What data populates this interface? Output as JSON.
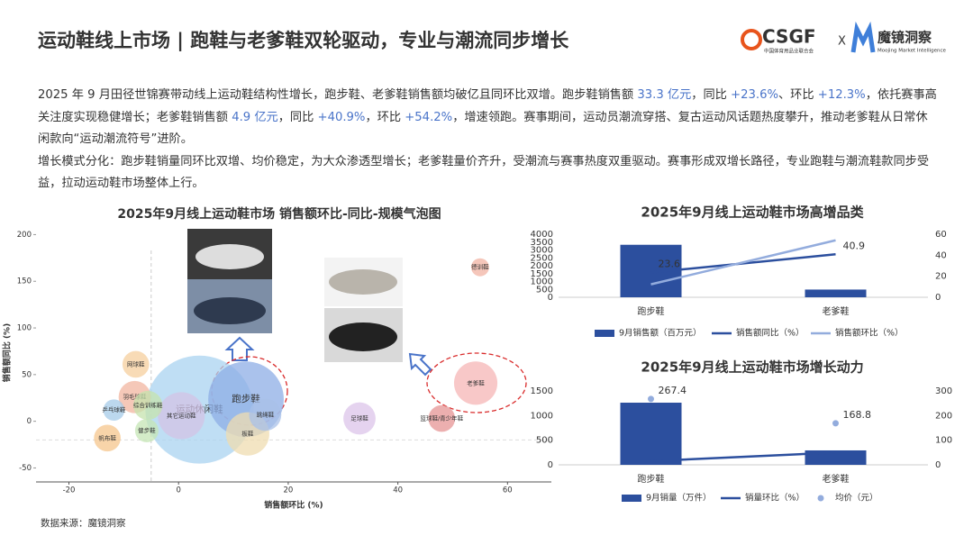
{
  "header": {
    "title": "运动鞋线上市场 | 跑鞋与老爹鞋双轮驱动，专业与潮流同步增长",
    "logo_text": "CSGF",
    "logo_sub": "中国体育用品业联合会",
    "separator": "X",
    "brand": "魔镜洞察",
    "brand_sub": "Moojing Market Intelligence"
  },
  "paragraphs": [
    {
      "segments": [
        {
          "text": "2025 年 9 月田径世锦赛带动线上运动鞋结构性增长，跑步鞋、老爹鞋销售额均破亿且同环比双增。跑步鞋销售额 "
        },
        {
          "text": "33.3 亿元",
          "highlight": true
        },
        {
          "text": "，同比 "
        },
        {
          "text": "+23.6%",
          "highlight": true
        },
        {
          "text": "、环比 "
        },
        {
          "text": "+12.3%",
          "highlight": true
        },
        {
          "text": "，依托赛事高关注度实现稳健增长；老爹鞋销售额 "
        },
        {
          "text": "4.9 亿元",
          "highlight": true
        },
        {
          "text": "，同比 "
        },
        {
          "text": "+40.9%",
          "highlight": true
        },
        {
          "text": "，环比 "
        },
        {
          "text": "+54.2%",
          "highlight": true
        },
        {
          "text": "，增速领跑。赛事期间，运动员潮流穿搭、复古运动风话题热度攀升，推动老爹鞋从日常休闲款向“运动潮流符号”进阶。"
        }
      ]
    },
    {
      "segments": [
        {
          "text": "增长模式分化：跑步鞋销量同环比双增、均价稳定，为大众渗透型增长；老爹鞋量价齐升，受潮流与赛事热度双重驱动。赛事形成双增长路径，专业跑鞋与潮流鞋款同步受益，拉动运动鞋市场整体上行。"
        }
      ]
    }
  ],
  "source": "数据来源：魔镜洞察",
  "chart_data": [
    {
      "type": "bubble",
      "title": "2025年9月线上运动鞋市场 销售额环比-同比-规模气泡图",
      "xlabel": "销售额环比 (%)",
      "ylabel": "销售额同比 (%)",
      "xlim": [
        -26,
        68
      ],
      "xticks": [
        -20,
        0,
        20,
        40,
        60
      ],
      "ylim": [
        -65,
        212
      ],
      "yticks": [
        -50,
        0,
        50,
        100,
        150,
        200
      ],
      "reference_lines": {
        "x": -5,
        "y": -20
      },
      "points": [
        {
          "name": "运动休闲鞋",
          "x": 3.8,
          "y": 12.5,
          "size": 360,
          "color": "#a9d3f0"
        },
        {
          "name": "跑步鞋",
          "x": 12.3,
          "y": 23.6,
          "size": 176,
          "color": "#8eaee6"
        },
        {
          "name": "其它运动鞋",
          "x": 0.5,
          "y": 6,
          "size": 68,
          "color": "#d3c3e6"
        },
        {
          "name": "板鞋",
          "x": 12.6,
          "y": -13.5,
          "size": 58,
          "color": "#efdcb0"
        },
        {
          "name": "跳绳鞋",
          "x": 15.8,
          "y": 7,
          "size": 32,
          "color": "#a8c0e8"
        },
        {
          "name": "老爹鞋",
          "x": 54.2,
          "y": 40.9,
          "size": 58,
          "color": "#f5b5b5"
        },
        {
          "name": "德训鞋",
          "x": 55,
          "y": 165,
          "size": 10,
          "color": "#f2b3a3"
        },
        {
          "name": "足球鞋",
          "x": 33,
          "y": 3,
          "size": 32,
          "color": "#dcc4ea"
        },
        {
          "name": "篮球鞋/青少年鞋",
          "x": 48,
          "y": 3,
          "size": 22,
          "color": "#e69494"
        },
        {
          "name": "网球鞋",
          "x": -7.8,
          "y": 61,
          "size": 22,
          "color": "#f5cf9e"
        },
        {
          "name": "羽毛球鞋",
          "x": -8,
          "y": 26,
          "size": 32,
          "color": "#f2b6a0"
        },
        {
          "name": "综合训练鞋",
          "x": -5.6,
          "y": 17,
          "size": 26,
          "color": "#c6e3ad"
        },
        {
          "name": "乒乓球鞋",
          "x": -11.8,
          "y": 12,
          "size": 14,
          "color": "#a6cbe8"
        },
        {
          "name": "健步鞋",
          "x": -5.8,
          "y": -10,
          "size": 17,
          "color": "#c6e6b6"
        },
        {
          "name": "帆布鞋",
          "x": -13,
          "y": -18,
          "size": 22,
          "color": "#f5c68c"
        }
      ]
    },
    {
      "type": "bar",
      "title": "2025年9月线上运动鞋市场高增品类",
      "categories": [
        "跑步鞋",
        "老爹鞋"
      ],
      "ylim": [
        0,
        4000
      ],
      "yticks": [
        0,
        500,
        1000,
        1500,
        2000,
        2500,
        3000,
        3500,
        4000
      ],
      "y2lim": [
        0,
        60
      ],
      "y2ticks": [
        0,
        20,
        40,
        60
      ],
      "series": [
        {
          "name": "9月销售额（百万元）",
          "type": "bar",
          "color": "#2c4f9e",
          "values": [
            3330,
            490
          ]
        },
        {
          "name": "销售额同比（%）",
          "type": "line",
          "axis": "y2",
          "color": "#2c4f9e",
          "values": [
            23.6,
            40.9
          ],
          "labels": true
        },
        {
          "name": "销售额环比（%）",
          "type": "line",
          "axis": "y2",
          "color": "#93acdd",
          "values": [
            12.3,
            54.2
          ]
        }
      ]
    },
    {
      "type": "bar",
      "title": "2025年9月线上运动鞋市场增长动力",
      "categories": [
        "跑步鞋",
        "老爹鞋"
      ],
      "ylim": [
        0,
        1500
      ],
      "yticks": [
        0,
        500,
        1000,
        1500
      ],
      "y2lim": [
        0,
        300
      ],
      "y2ticks": [
        0,
        100,
        200,
        300
      ],
      "series": [
        {
          "name": "9月销量（万件）",
          "type": "bar",
          "color": "#2c4f9e",
          "values": [
            1262,
            293
          ]
        },
        {
          "name": "销量环比（%）",
          "type": "line",
          "axis": "y2",
          "color": "#2c4f9e",
          "values": [
            15,
            50
          ]
        },
        {
          "name": "均价（元）",
          "type": "scatter",
          "axis": "y2",
          "color": "#93acdd",
          "values": [
            267.4,
            168.8
          ],
          "labels": true
        }
      ]
    }
  ]
}
